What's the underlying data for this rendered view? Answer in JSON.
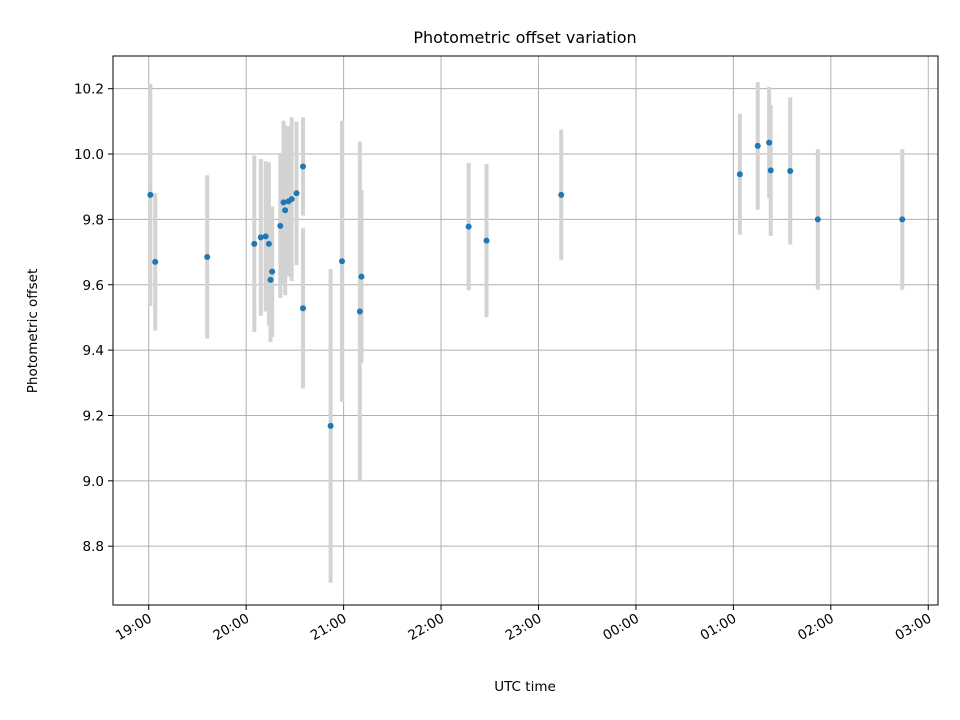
{
  "chart_data": {
    "type": "scatter",
    "title": "Photometric offset variation",
    "xlabel": "UTC time",
    "ylabel": "Photometric offset",
    "x_tick_labels": [
      "19:00",
      "20:00",
      "21:00",
      "22:00",
      "23:00",
      "00:00",
      "01:00",
      "02:00",
      "03:00"
    ],
    "y_tick_labels": [
      "8.8",
      "9.0",
      "9.2",
      "9.4",
      "9.6",
      "9.8",
      "10.0",
      "10.2"
    ],
    "y_ticks": [
      8.8,
      9.0,
      9.2,
      9.4,
      9.6,
      9.8,
      10.0,
      10.2
    ],
    "xlim": [
      "18:38",
      "03:06"
    ],
    "ylim": [
      8.62,
      10.3
    ],
    "grid": true,
    "colors": {
      "point": "#1f77b4",
      "errorbar": "#d3d3d3"
    },
    "series": [
      {
        "x": [
          "19:01",
          "19:04",
          "19:36",
          "20:05",
          "20:09",
          "20:12",
          "20:14",
          "20:15",
          "20:16",
          "20:21",
          "20:23",
          "20:24",
          "20:26",
          "20:28",
          "20:31",
          "20:35",
          "20:35",
          "20:52",
          "20:59",
          "21:10",
          "21:11",
          "22:17",
          "22:28",
          "23:14",
          "01:04",
          "01:15",
          "01:22",
          "01:23",
          "01:35",
          "01:52",
          "02:44"
        ],
        "y": [
          9.875,
          9.67,
          9.685,
          9.725,
          9.745,
          9.748,
          9.725,
          9.615,
          9.64,
          9.78,
          9.852,
          9.828,
          9.855,
          9.862,
          9.88,
          9.962,
          9.528,
          9.168,
          9.672,
          9.518,
          9.625,
          9.778,
          9.735,
          9.875,
          9.938,
          10.025,
          10.035,
          9.95,
          9.948,
          9.8,
          9.8
        ],
        "yerr": [
          0.34,
          0.21,
          0.25,
          0.27,
          0.24,
          0.23,
          0.25,
          0.19,
          0.2,
          0.22,
          0.25,
          0.26,
          0.23,
          0.25,
          0.22,
          0.15,
          0.245,
          0.48,
          0.43,
          0.52,
          0.265,
          0.195,
          0.235,
          0.2,
          0.185,
          0.195,
          0.17,
          0.2,
          0.225,
          0.215,
          0.215
        ]
      }
    ]
  }
}
